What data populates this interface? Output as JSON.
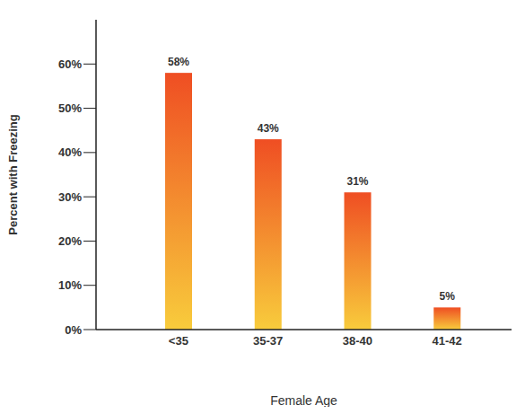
{
  "chart_data": {
    "type": "bar",
    "categories": [
      "<35",
      "35-37",
      "38-40",
      "41-42"
    ],
    "values": [
      58,
      43,
      31,
      5
    ],
    "value_labels": [
      "58%",
      "43%",
      "31%",
      "5%"
    ],
    "data_labels": true,
    "x_label": "Female Age",
    "y_label": "Percent with Freezing",
    "color": "#ef4e23",
    "ylim": [
      0,
      70
    ],
    "yticks": [
      {
        "value": 0,
        "label": "0%"
      },
      {
        "value": 10,
        "label": "10%"
      },
      {
        "value": 20,
        "label": "20%"
      },
      {
        "value": 30,
        "label": "30%"
      },
      {
        "value": 40,
        "label": "40%"
      },
      {
        "value": 50,
        "label": "50%"
      },
      {
        "value": 60,
        "label": "60%"
      }
    ],
    "grid": false
  }
}
